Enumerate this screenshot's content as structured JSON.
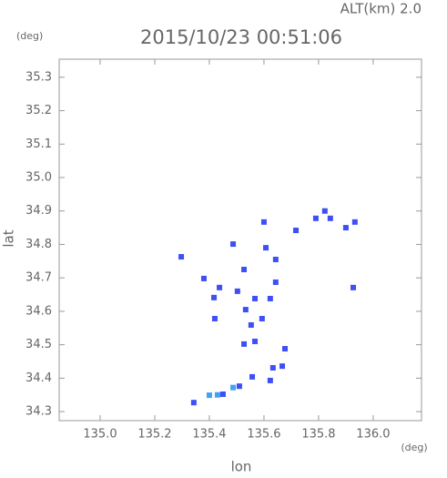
{
  "chart_data": {
    "type": "scatter",
    "title": "2015/10/23 00:51:06",
    "subtitle": "ALT(km) 2.0",
    "xlabel": "lon",
    "ylabel": "lat",
    "xunit": "(deg)",
    "yunit": "(deg)",
    "xlim": [
      134.85,
      136.177
    ],
    "ylim": [
      34.273,
      35.354
    ],
    "xticks": [
      {
        "value": 135,
        "label": "135.0"
      },
      135.2,
      135.4,
      135.6,
      135.8,
      {
        "value": 136,
        "label": "136.0"
      }
    ],
    "yticks": [
      34.3,
      34.4,
      34.5,
      34.6,
      34.7,
      34.8,
      34.9,
      {
        "value": 35,
        "label": "35.0"
      },
      35.1,
      35.2,
      35.3
    ],
    "series": [
      {
        "color": "#3d4ff5",
        "x": [
          135.343,
          135.45,
          135.51,
          135.557,
          135.623,
          135.633,
          135.667,
          135.677,
          135.567,
          135.527,
          135.553,
          135.533,
          135.593,
          135.503,
          135.417,
          135.437,
          135.38,
          135.643,
          135.623,
          135.567,
          135.927,
          135.933,
          135.9,
          135.79,
          135.843,
          135.6,
          135.607,
          135.643,
          135.527,
          135.297,
          135.42,
          135.487,
          135.823,
          135.717
        ],
        "values": [
          34.327,
          34.352,
          34.376,
          34.404,
          34.393,
          34.431,
          34.436,
          34.488,
          34.51,
          34.502,
          34.559,
          34.605,
          34.578,
          34.66,
          34.641,
          34.671,
          34.698,
          34.687,
          34.638,
          34.638,
          34.671,
          34.867,
          34.85,
          34.878,
          34.878,
          34.867,
          34.79,
          34.755,
          34.725,
          34.763,
          34.578,
          34.801,
          34.9,
          34.842
        ]
      },
      {
        "color": "#3fa2f5",
        "x": [
          135.4,
          135.43,
          135.487
        ],
        "values": [
          34.349,
          34.35,
          34.372
        ]
      }
    ]
  }
}
